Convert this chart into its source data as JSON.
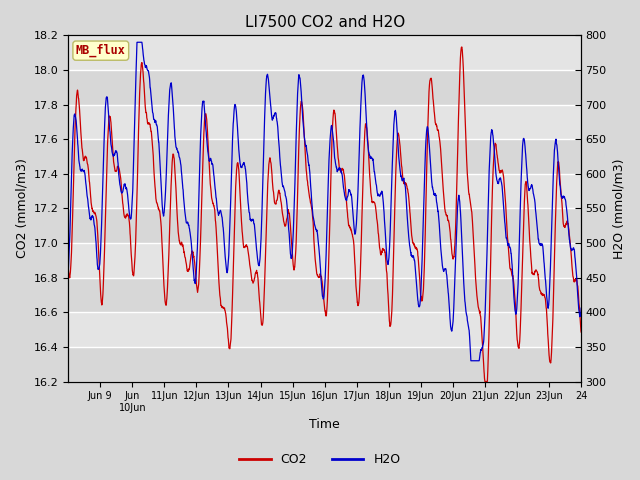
{
  "title": "LI7500 CO2 and H2O",
  "xlabel": "Time",
  "ylabel_left": "CO2 (mmol/m3)",
  "ylabel_right": "H2O (mmol/m3)",
  "ylim_left": [
    16.2,
    18.2
  ],
  "ylim_right": [
    300,
    800
  ],
  "yticks_left": [
    16.2,
    16.4,
    16.6,
    16.8,
    17.0,
    17.2,
    17.4,
    17.6,
    17.8,
    18.0,
    18.2
  ],
  "yticks_right": [
    300,
    350,
    400,
    450,
    500,
    550,
    600,
    650,
    700,
    750,
    800
  ],
  "co2_color": "#cc0000",
  "h2o_color": "#0000cc",
  "fig_bg_color": "#d8d8d8",
  "plot_bg_color": "#e0e0e0",
  "grid_color": "#ffffff",
  "mb_flux_label": "MB_flux",
  "mb_flux_bg": "#ffffcc",
  "mb_flux_border": "#cccc88",
  "mb_flux_text_color": "#aa0000",
  "legend_co2": "CO2",
  "legend_h2o": "H2O",
  "title_fontsize": 11,
  "axis_label_fontsize": 9,
  "tick_fontsize": 8,
  "line_width": 0.9,
  "figsize": [
    6.4,
    4.8
  ],
  "dpi": 100
}
